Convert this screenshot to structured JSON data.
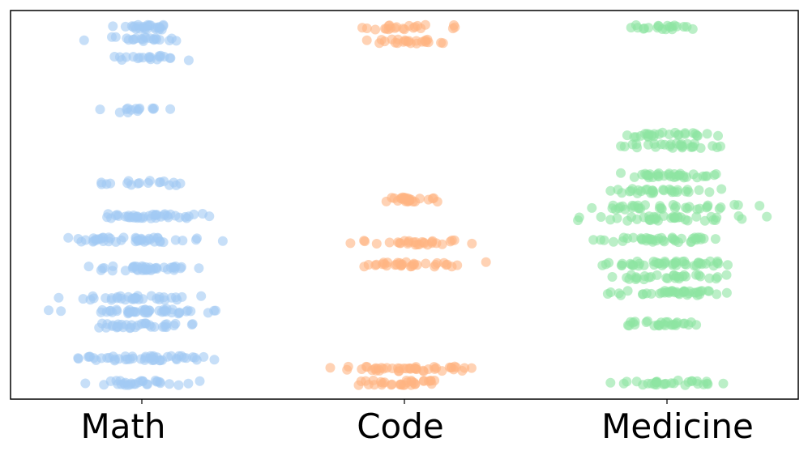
{
  "chart_data": {
    "type": "scatter",
    "subtype": "strip",
    "categories": [
      "Math",
      "Code",
      "Medicine"
    ],
    "ylim": [
      0,
      1
    ],
    "y_ticks_shown": false,
    "grid": false,
    "legend": "none",
    "colors": {
      "Math": "#a1c9f4",
      "Code": "#ffb482",
      "Medicine": "#8de5a1"
    },
    "series": [
      {
        "category": "Math",
        "color": "#a1c9f4",
        "bands": [
          {
            "y": 0.957,
            "count": 26,
            "spread": 0.26
          },
          {
            "y": 0.927,
            "count": 22,
            "spread": 0.32
          },
          {
            "y": 0.878,
            "count": 20,
            "spread": 0.3
          },
          {
            "y": 0.743,
            "count": 14,
            "spread": 0.26
          },
          {
            "y": 0.556,
            "count": 18,
            "spread": 0.4
          },
          {
            "y": 0.471,
            "count": 40,
            "spread": 0.42
          },
          {
            "y": 0.41,
            "count": 44,
            "spread": 0.48
          },
          {
            "y": 0.336,
            "count": 40,
            "spread": 0.44
          },
          {
            "y": 0.26,
            "count": 34,
            "spread": 0.42
          },
          {
            "y": 0.226,
            "count": 46,
            "spread": 0.52
          },
          {
            "y": 0.189,
            "count": 34,
            "spread": 0.44
          },
          {
            "y": 0.105,
            "count": 48,
            "spread": 0.5
          },
          {
            "y": 0.042,
            "count": 30,
            "spread": 0.36
          }
        ]
      },
      {
        "category": "Code",
        "color": "#ffb482",
        "bands": [
          {
            "y": 0.957,
            "count": 22,
            "spread": 0.34
          },
          {
            "y": 0.92,
            "count": 24,
            "spread": 0.3
          },
          {
            "y": 0.514,
            "count": 26,
            "spread": 0.34
          },
          {
            "y": 0.403,
            "count": 30,
            "spread": 0.4
          },
          {
            "y": 0.347,
            "count": 34,
            "spread": 0.44
          },
          {
            "y": 0.078,
            "count": 46,
            "spread": 0.52
          },
          {
            "y": 0.042,
            "count": 32,
            "spread": 0.38
          }
        ]
      },
      {
        "category": "Medicine",
        "color": "#8de5a1",
        "bands": [
          {
            "y": 0.957,
            "count": 20,
            "spread": 0.3
          },
          {
            "y": 0.68,
            "count": 26,
            "spread": 0.32
          },
          {
            "y": 0.652,
            "count": 28,
            "spread": 0.34
          },
          {
            "y": 0.576,
            "count": 34,
            "spread": 0.44
          },
          {
            "y": 0.535,
            "count": 30,
            "spread": 0.4
          },
          {
            "y": 0.494,
            "count": 36,
            "spread": 0.46
          },
          {
            "y": 0.465,
            "count": 38,
            "spread": 0.52
          },
          {
            "y": 0.41,
            "count": 40,
            "spread": 0.46
          },
          {
            "y": 0.349,
            "count": 46,
            "spread": 0.5
          },
          {
            "y": 0.314,
            "count": 30,
            "spread": 0.4
          },
          {
            "y": 0.273,
            "count": 40,
            "spread": 0.5
          },
          {
            "y": 0.195,
            "count": 28,
            "spread": 0.34
          },
          {
            "y": 0.042,
            "count": 30,
            "spread": 0.44
          }
        ]
      }
    ]
  }
}
